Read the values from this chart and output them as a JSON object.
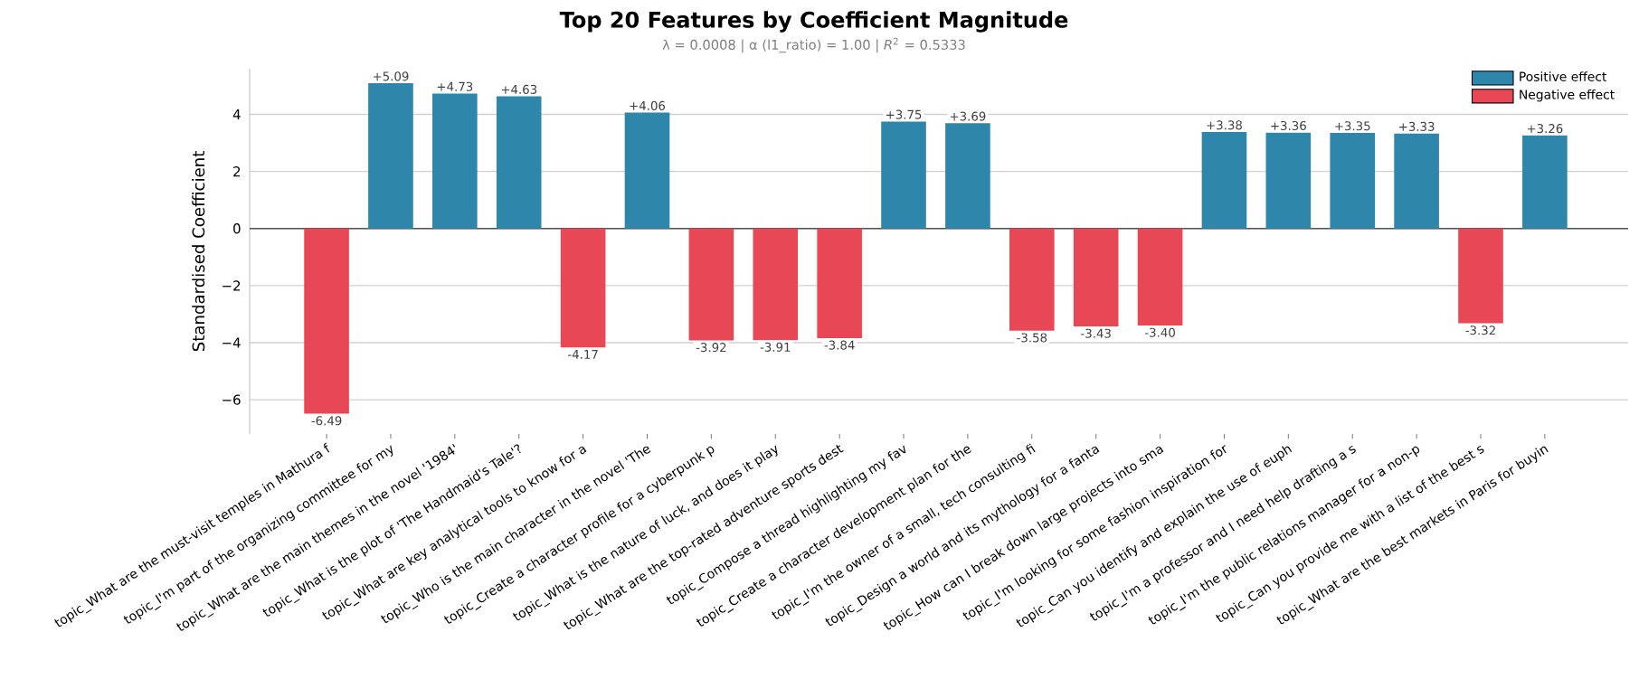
{
  "chart_data": {
    "type": "bar",
    "title": "Top 20 Features by Coefficient Magnitude",
    "subtitle": "λ = 0.0008   |   α (l1_ratio) = 1.00   |   *R*$^{2}$ = 0.5333",
    "ylabel": "Standardised Coefficient",
    "categories": [
      "topic_What are the must-visit temples in Mathura f",
      "topic_I'm part of the organizing committee for my",
      "topic_What are the main themes in the novel '1984'",
      "topic_What is the plot of 'The Handmaid's Tale'?",
      "topic_What are key analytical tools to know for a",
      "topic_Who is the main character in the novel 'The",
      "topic_Create a character profile for a cyberpunk p",
      "topic_What is the nature of luck, and does it play",
      "topic_What are the top-rated adventure sports dest",
      "topic_Compose a thread highlighting my fav",
      "topic_Create a character development plan for the",
      "topic_I'm the owner of a small, tech consulting fi",
      "topic_Design a world and its mythology for a fanta",
      "topic_How can I break down large projects into sma",
      "topic_I'm looking for some fashion inspiration for",
      "topic_Can you identify and explain the use of euph",
      "topic_I'm a professor and I need help drafting a s",
      "topic_I'm the public relations manager for a non-p",
      "topic_Can you provide me with a list of the best s",
      "topic_What are the best markets in Paris for buyin"
    ],
    "series": [
      {
        "name": "Positive effect",
        "color": "#2e86ab",
        "values": [
          null,
          5.09,
          4.73,
          4.63,
          null,
          4.06,
          null,
          null,
          null,
          3.75,
          3.69,
          null,
          null,
          null,
          3.38,
          3.36,
          3.35,
          3.33,
          null,
          3.26
        ],
        "value_labels": [
          null,
          "+5.09",
          "+4.73",
          "+4.63",
          null,
          "+4.06",
          null,
          null,
          null,
          "+3.75",
          "+3.69",
          null,
          null,
          null,
          "+3.38",
          "+3.36",
          "+3.35",
          "+3.33",
          null,
          "+3.26"
        ]
      },
      {
        "name": "Negative effect",
        "color": "#e84855",
        "values": [
          -6.49,
          null,
          null,
          null,
          -4.17,
          null,
          -3.92,
          -3.91,
          -3.84,
          null,
          null,
          -3.58,
          -3.43,
          -3.4,
          null,
          null,
          null,
          null,
          -3.32,
          null
        ],
        "value_labels": [
          "-6.49",
          null,
          null,
          null,
          "-4.17",
          null,
          "-3.92",
          "-3.91",
          "-3.84",
          null,
          null,
          "-3.58",
          "-3.43",
          "-3.40",
          null,
          null,
          null,
          null,
          "-3.32",
          null
        ]
      }
    ],
    "ylim": [
      -7.2,
      5.6
    ],
    "yticks": [
      {
        "value": -6,
        "label": "−6"
      },
      {
        "value": -4,
        "label": "−4"
      },
      {
        "value": -2,
        "label": "−2"
      },
      0,
      2,
      4
    ],
    "ref_lines": [
      {
        "axis": "y",
        "value": 0,
        "color": "#555555"
      }
    ],
    "grid": "y",
    "legend": "top right"
  }
}
